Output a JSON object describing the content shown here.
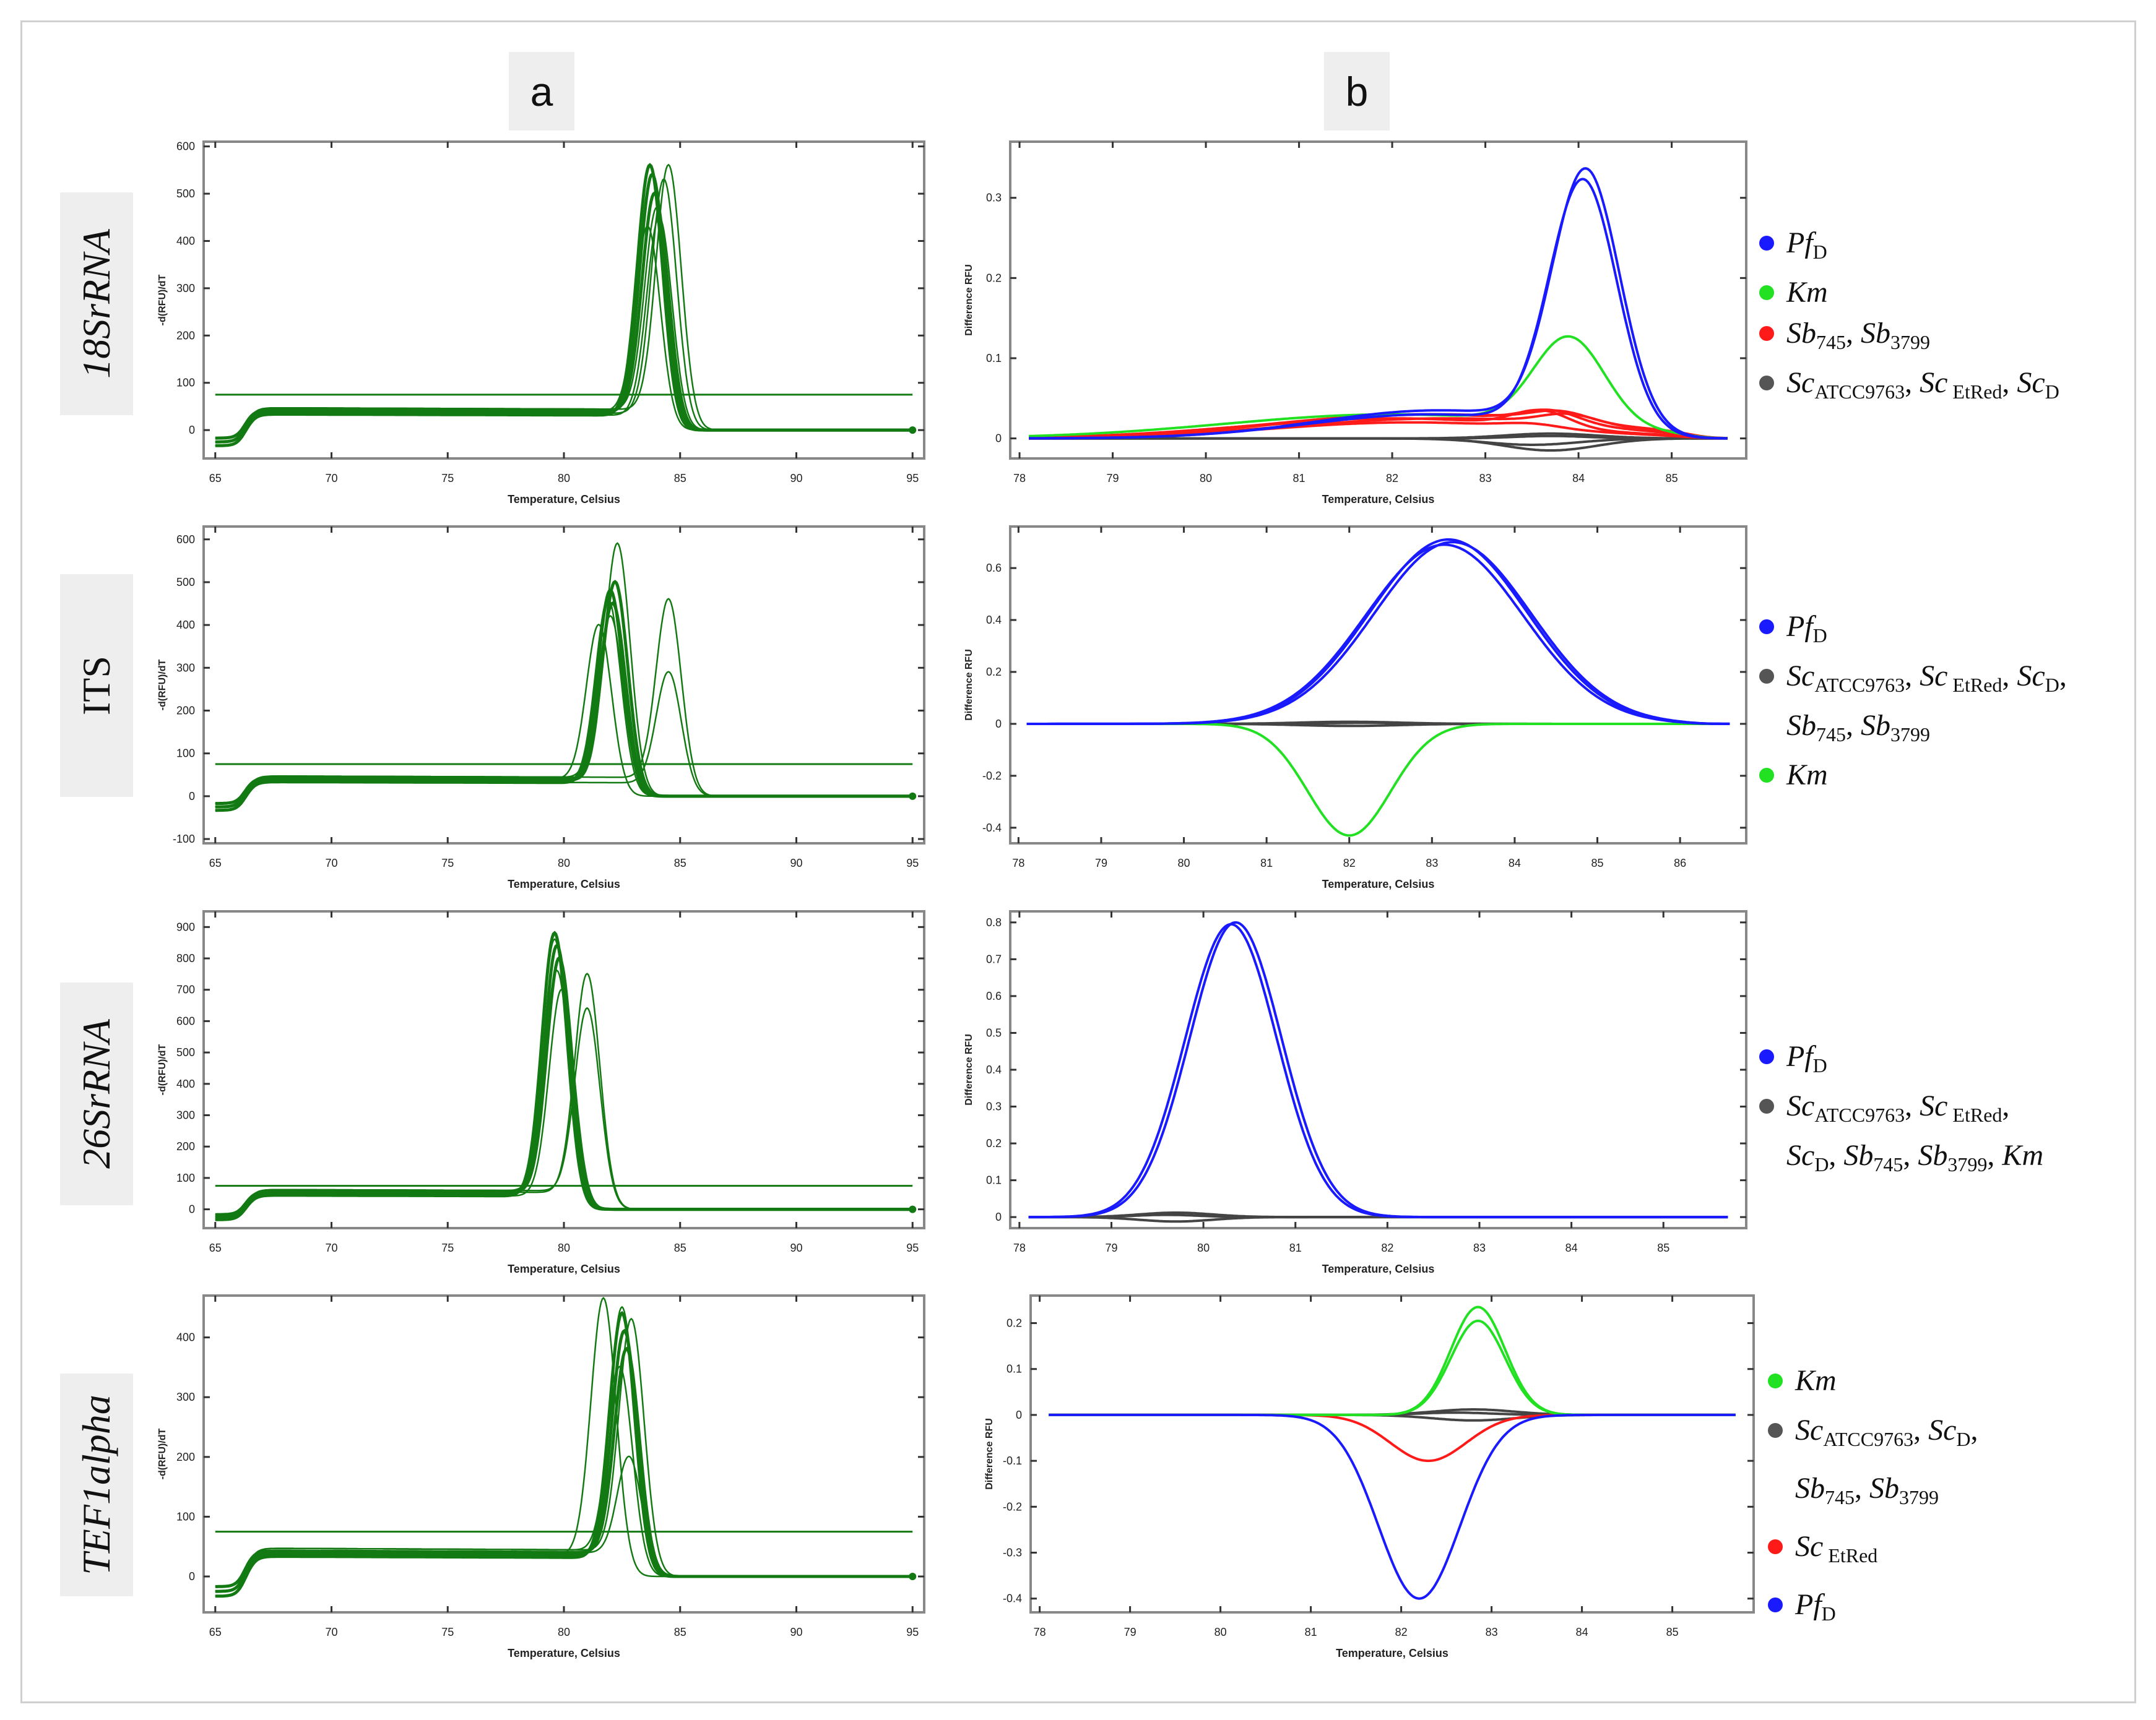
{
  "column_labels": [
    "a",
    "b"
  ],
  "row_labels": [
    {
      "text": "18SrRNA",
      "italic": true
    },
    {
      "text": "ITS",
      "italic": false
    },
    {
      "text": "26SrRNA",
      "italic": true
    },
    {
      "text": "TEF1alpha",
      "italic": true
    }
  ],
  "colors": {
    "Pf": "#1a1aff",
    "Km": "#22e022",
    "Sb": "#ff1a1a",
    "Sc": "#444444",
    "melt": "#137a13",
    "threshold": "#137a13"
  },
  "legends": [
    [
      {
        "color": "#1a1aff",
        "lines": [
          [
            {
              "t": "Pf",
              "i": true
            },
            {
              "t": "D",
              "sub": true
            }
          ]
        ]
      },
      {
        "color": "#22e022",
        "lines": [
          [
            {
              "t": "Km",
              "i": true
            }
          ]
        ]
      },
      {
        "color": "#ff1a1a",
        "lines": [
          [
            {
              "t": "Sb",
              "i": true
            },
            {
              "t": "745",
              "sub": true
            },
            {
              "t": ", "
            },
            {
              "t": "Sb",
              "i": true
            },
            {
              "t": "3799",
              "sub": true
            }
          ]
        ]
      },
      {
        "color": "#555555",
        "lines": [
          [
            {
              "t": "Sc",
              "i": true
            },
            {
              "t": "ATCC9763",
              "sub": true
            },
            {
              "t": ", "
            },
            {
              "t": "Sc",
              "i": true
            },
            {
              "t": " EtRed",
              "sub": true
            },
            {
              "t": ", "
            },
            {
              "t": "Sc",
              "i": true
            },
            {
              "t": "D",
              "sub": true
            }
          ]
        ]
      }
    ],
    [
      {
        "color": "#1a1aff",
        "lines": [
          [
            {
              "t": "Pf",
              "i": true
            },
            {
              "t": "D",
              "sub": true
            }
          ]
        ]
      },
      {
        "color": "#555555",
        "lines": [
          [
            {
              "t": "Sc",
              "i": true
            },
            {
              "t": "ATCC9763",
              "sub": true
            },
            {
              "t": ", "
            },
            {
              "t": "Sc",
              "i": true
            },
            {
              "t": " EtRed",
              "sub": true
            },
            {
              "t": ", "
            },
            {
              "t": "Sc",
              "i": true
            },
            {
              "t": "D",
              "sub": true
            },
            {
              "t": ","
            }
          ],
          [
            {
              "t": "Sb",
              "i": true
            },
            {
              "t": "745",
              "sub": true
            },
            {
              "t": ", "
            },
            {
              "t": "Sb",
              "i": true
            },
            {
              "t": "3799",
              "sub": true
            }
          ]
        ]
      },
      {
        "color": "#22e022",
        "lines": [
          [
            {
              "t": "Km",
              "i": true
            }
          ]
        ]
      }
    ],
    [
      {
        "color": "#1a1aff",
        "lines": [
          [
            {
              "t": "Pf",
              "i": true
            },
            {
              "t": "D",
              "sub": true
            }
          ]
        ]
      },
      {
        "color": "#555555",
        "lines": [
          [
            {
              "t": "Sc",
              "i": true
            },
            {
              "t": "ATCC9763",
              "sub": true
            },
            {
              "t": ", "
            },
            {
              "t": "Sc",
              "i": true
            },
            {
              "t": " EtRed",
              "sub": true
            },
            {
              "t": ","
            }
          ],
          [
            {
              "t": "Sc",
              "i": true
            },
            {
              "t": "D",
              "sub": true
            },
            {
              "t": ", "
            },
            {
              "t": "Sb",
              "i": true
            },
            {
              "t": "745",
              "sub": true
            },
            {
              "t": ", "
            },
            {
              "t": "Sb",
              "i": true
            },
            {
              "t": "3799",
              "sub": true
            },
            {
              "t": ", "
            },
            {
              "t": "Km",
              "i": true
            }
          ]
        ]
      }
    ],
    [
      {
        "color": "#22e022",
        "lines": [
          [
            {
              "t": "Km",
              "i": true
            }
          ]
        ]
      },
      {
        "color": "#555555",
        "lines": [
          [
            {
              "t": "Sc",
              "i": true
            },
            {
              "t": "ATCC9763",
              "sub": true
            },
            {
              "t": ", "
            },
            {
              "t": "Sc",
              "i": true
            },
            {
              "t": "D",
              "sub": true
            },
            {
              "t": ","
            }
          ],
          [
            {
              "t": "Sb",
              "i": true
            },
            {
              "t": "745",
              "sub": true
            },
            {
              "t": ", "
            },
            {
              "t": "Sb",
              "i": true
            },
            {
              "t": "3799",
              "sub": true
            }
          ]
        ]
      },
      {
        "color": "#ff1a1a",
        "lines": [
          [
            {
              "t": "Sc",
              "i": true
            },
            {
              "t": " EtRed",
              "sub": true
            }
          ]
        ]
      },
      {
        "color": "#1a1aff",
        "lines": [
          [
            {
              "t": "Pf",
              "i": true
            },
            {
              "t": "D",
              "sub": true
            }
          ]
        ]
      }
    ]
  ],
  "chart_data": [
    {
      "id": "a-18S",
      "type": "line",
      "xlabel": "Temperature, Celsius",
      "ylabel": "-d(RFU)/dT",
      "xlim": [
        64.5,
        95.5
      ],
      "ylim": [
        -60,
        610
      ],
      "xticks": [
        65,
        70,
        75,
        80,
        85,
        90,
        95
      ],
      "yticks": [
        0,
        100,
        200,
        300,
        400,
        500,
        600
      ],
      "threshold": 75,
      "plateau": 45,
      "series": [
        {
          "name": "melt peaks",
          "color": "#137a13",
          "tm": [
            83.7,
            83.8,
            83.9,
            84.0,
            84.1,
            84.3,
            83.6,
            84.5
          ],
          "height": [
            560,
            540,
            500,
            470,
            450,
            530,
            430,
            560
          ]
        }
      ]
    },
    {
      "id": "a-ITS",
      "type": "line",
      "xlabel": "Temperature, Celsius",
      "ylabel": "-d(RFU)/dT",
      "xlim": [
        64.5,
        95.5
      ],
      "ylim": [
        -110,
        630
      ],
      "xticks": [
        65,
        70,
        75,
        80,
        85,
        90,
        95
      ],
      "yticks": [
        -100,
        0,
        100,
        200,
        300,
        400,
        500,
        600
      ],
      "threshold": 75,
      "plateau": 45,
      "series": [
        {
          "name": "melt peaks",
          "color": "#137a13",
          "tm": [
            82.0,
            82.1,
            82.2,
            82.0,
            81.9,
            82.3,
            81.5,
            84.5,
            84.5
          ],
          "height": [
            480,
            450,
            500,
            420,
            460,
            590,
            400,
            460,
            290
          ]
        }
      ]
    },
    {
      "id": "a-26S",
      "type": "line",
      "xlabel": "Temperature, Celsius",
      "ylabel": "-d(RFU)/dT",
      "xlim": [
        64.5,
        95.5
      ],
      "ylim": [
        -60,
        950
      ],
      "xticks": [
        65,
        70,
        75,
        80,
        85,
        90,
        95
      ],
      "yticks": [
        0,
        100,
        200,
        300,
        400,
        500,
        600,
        700,
        800,
        900
      ],
      "threshold": 75,
      "plateau": 60,
      "series": [
        {
          "name": "melt peaks",
          "color": "#137a13",
          "tm": [
            79.6,
            79.7,
            79.8,
            79.7,
            79.9,
            79.6,
            81.0,
            81.0
          ],
          "height": [
            880,
            840,
            800,
            760,
            700,
            860,
            750,
            640
          ]
        }
      ]
    },
    {
      "id": "a-TEF",
      "type": "line",
      "xlabel": "Temperature, Celsius",
      "ylabel": "-d(RFU)/dT",
      "xlim": [
        64.5,
        95.5
      ],
      "ylim": [
        -60,
        470
      ],
      "xticks": [
        65,
        70,
        75,
        80,
        85,
        90,
        95
      ],
      "yticks": [
        0,
        100,
        200,
        300,
        400
      ],
      "threshold": 75,
      "plateau": 45,
      "series": [
        {
          "name": "melt peaks",
          "color": "#137a13",
          "tm": [
            82.5,
            82.6,
            82.7,
            82.4,
            82.5,
            81.7,
            82.8,
            82.9
          ],
          "height": [
            440,
            410,
            380,
            350,
            450,
            465,
            200,
            430
          ]
        }
      ]
    },
    {
      "id": "b-18S",
      "type": "line",
      "xlabel": "Temperature, Celsius",
      "ylabel": "Difference RFU",
      "xlim": [
        77.9,
        85.8
      ],
      "ylim": [
        -0.025,
        0.37
      ],
      "xticks": [
        78,
        79,
        80,
        81,
        82,
        83,
        84,
        85
      ],
      "yticks": [
        0.0,
        0.1,
        0.2,
        0.3
      ],
      "series": [
        {
          "name": "Sc",
          "color": "#444444",
          "peaks": [
            [
              [
                83.7,
                0.006,
                0.5
              ]
            ],
            [
              [
                83.7,
                -0.015,
                0.5
              ]
            ],
            [
              [
                83.7,
                0.003,
                0.4
              ]
            ],
            [
              [
                83.5,
                -0.008,
                0.5
              ]
            ]
          ]
        },
        {
          "name": "Sb",
          "color": "#ff1a1a",
          "peaks": [
            [
              [
                83.7,
                0.015,
                0.3
              ],
              [
                82.3,
                0.03,
                1.6
              ]
            ],
            [
              [
                83.8,
                0.012,
                0.3
              ],
              [
                82.5,
                0.03,
                1.7
              ]
            ],
            [
              [
                83.6,
                0.02,
                0.3
              ],
              [
                82.0,
                0.025,
                1.6
              ]
            ],
            [
              [
                83.9,
                0.012,
                0.3
              ],
              [
                82.6,
                0.025,
                1.7
              ]
            ],
            [
              [
                83.5,
                0.005,
                0.3
              ],
              [
                82.2,
                0.02,
                1.5
              ]
            ]
          ]
        },
        {
          "name": "Km",
          "color": "#22e022",
          "peaks": [
            [
              [
                83.9,
                0.11,
                0.38
              ],
              [
                82.0,
                0.03,
                1.8
              ]
            ]
          ]
        },
        {
          "name": "Pf",
          "color": "#1a1aff",
          "peaks": [
            [
              [
                84.08,
                0.32,
                0.36
              ],
              [
                82.5,
                0.035,
                1.3
              ]
            ],
            [
              [
                84.05,
                0.31,
                0.36
              ],
              [
                82.4,
                0.03,
                1.3
              ]
            ]
          ]
        }
      ]
    },
    {
      "id": "b-ITS",
      "type": "line",
      "xlabel": "Temperature, Celsius",
      "ylabel": "Difference RFU",
      "xlim": [
        77.9,
        86.8
      ],
      "ylim": [
        -0.46,
        0.76
      ],
      "xticks": [
        78,
        79,
        80,
        81,
        82,
        83,
        84,
        85,
        86
      ],
      "yticks": [
        -0.4,
        -0.2,
        0.0,
        0.2,
        0.4,
        0.6
      ],
      "series": [
        {
          "name": "Sc/Sb",
          "color": "#444444",
          "peaks": [
            [
              [
                82.0,
                0.008,
                0.6
              ]
            ],
            [
              [
                82.0,
                -0.008,
                0.6
              ]
            ],
            [
              [
                82.2,
                0.004,
                0.5
              ]
            ]
          ]
        },
        {
          "name": "Km",
          "color": "#22e022",
          "peaks": [
            [
              [
                82.0,
                -0.43,
                0.5
              ]
            ]
          ]
        },
        {
          "name": "Pf",
          "color": "#1a1aff",
          "peaks": [
            [
              [
                83.2,
                0.71,
                0.95
              ]
            ],
            [
              [
                83.25,
                0.7,
                0.95
              ]
            ],
            [
              [
                83.15,
                0.69,
                0.95
              ]
            ]
          ]
        }
      ]
    },
    {
      "id": "b-26S",
      "type": "line",
      "xlabel": "Temperature, Celsius",
      "ylabel": "Difference RFU",
      "xlim": [
        77.9,
        85.9
      ],
      "ylim": [
        -0.03,
        0.83
      ],
      "xticks": [
        78,
        79,
        80,
        81,
        82,
        83,
        84,
        85
      ],
      "yticks": [
        0.0,
        0.1,
        0.2,
        0.3,
        0.4,
        0.5,
        0.6,
        0.7,
        0.8
      ],
      "series": [
        {
          "name": "Sc/Sb/Km",
          "color": "#444444",
          "peaks": [
            [
              [
                79.7,
                0.012,
                0.4
              ]
            ],
            [
              [
                79.7,
                -0.012,
                0.4
              ]
            ],
            [
              [
                79.6,
                0.006,
                0.35
              ]
            ]
          ]
        },
        {
          "name": "Pf",
          "color": "#1a1aff",
          "peaks": [
            [
              [
                80.35,
                0.8,
                0.5
              ]
            ],
            [
              [
                80.3,
                0.795,
                0.5
              ]
            ]
          ]
        }
      ]
    },
    {
      "id": "b-TEF",
      "type": "line",
      "xlabel": "Temperature, Celsius",
      "ylabel": "Difference RFU",
      "xlim": [
        77.9,
        85.9
      ],
      "ylim": [
        -0.43,
        0.26
      ],
      "xticks": [
        78,
        79,
        80,
        81,
        82,
        83,
        84,
        85
      ],
      "yticks": [
        -0.4,
        -0.3,
        -0.2,
        -0.1,
        0.0,
        0.1,
        0.2
      ],
      "series": [
        {
          "name": "Sc/Sb",
          "color": "#444444",
          "peaks": [
            [
              [
                82.8,
                0.012,
                0.45
              ]
            ],
            [
              [
                82.8,
                -0.012,
                0.45
              ]
            ],
            [
              [
                82.6,
                0.005,
                0.4
              ]
            ]
          ]
        },
        {
          "name": "Sc EtRed",
          "color": "#ff1a1a",
          "peaks": [
            [
              [
                82.3,
                -0.1,
                0.42
              ]
            ]
          ]
        },
        {
          "name": "Km",
          "color": "#22e022",
          "peaks": [
            [
              [
                82.85,
                0.235,
                0.3
              ]
            ],
            [
              [
                82.85,
                0.205,
                0.3
              ]
            ]
          ]
        },
        {
          "name": "Pf",
          "color": "#1a1aff",
          "peaks": [
            [
              [
                82.2,
                -0.4,
                0.45
              ]
            ]
          ]
        }
      ]
    }
  ]
}
